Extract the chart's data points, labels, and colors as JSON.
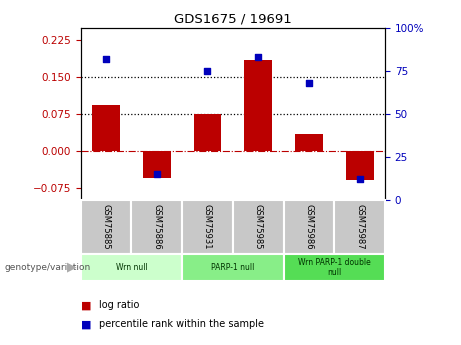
{
  "title": "GDS1675 / 19691",
  "samples": [
    "GSM75885",
    "GSM75886",
    "GSM75931",
    "GSM75985",
    "GSM75986",
    "GSM75987"
  ],
  "log_ratio": [
    0.092,
    -0.055,
    0.075,
    0.185,
    0.035,
    -0.06
  ],
  "percentile_rank_pct": [
    82,
    15,
    75,
    83,
    68,
    12
  ],
  "bar_color": "#bb0000",
  "dot_color": "#0000bb",
  "ylim_left": [
    -0.1,
    0.25
  ],
  "ylim_right": [
    0,
    100
  ],
  "yticks_left": [
    -0.075,
    0,
    0.075,
    0.15,
    0.225
  ],
  "yticks_right": [
    0,
    25,
    50,
    75,
    100
  ],
  "hlines": [
    0.075,
    0.15
  ],
  "group_data": [
    [
      0,
      1,
      "Wrn null",
      "#ccffcc"
    ],
    [
      2,
      3,
      "PARP-1 null",
      "#88ee88"
    ],
    [
      4,
      5,
      "Wrn PARP-1 double\nnull",
      "#55dd55"
    ]
  ],
  "sample_box_color": "#c8c8c8",
  "legend_log_ratio": "log ratio",
  "legend_percentile": "percentile rank within the sample",
  "genotype_label": "genotype/variation"
}
